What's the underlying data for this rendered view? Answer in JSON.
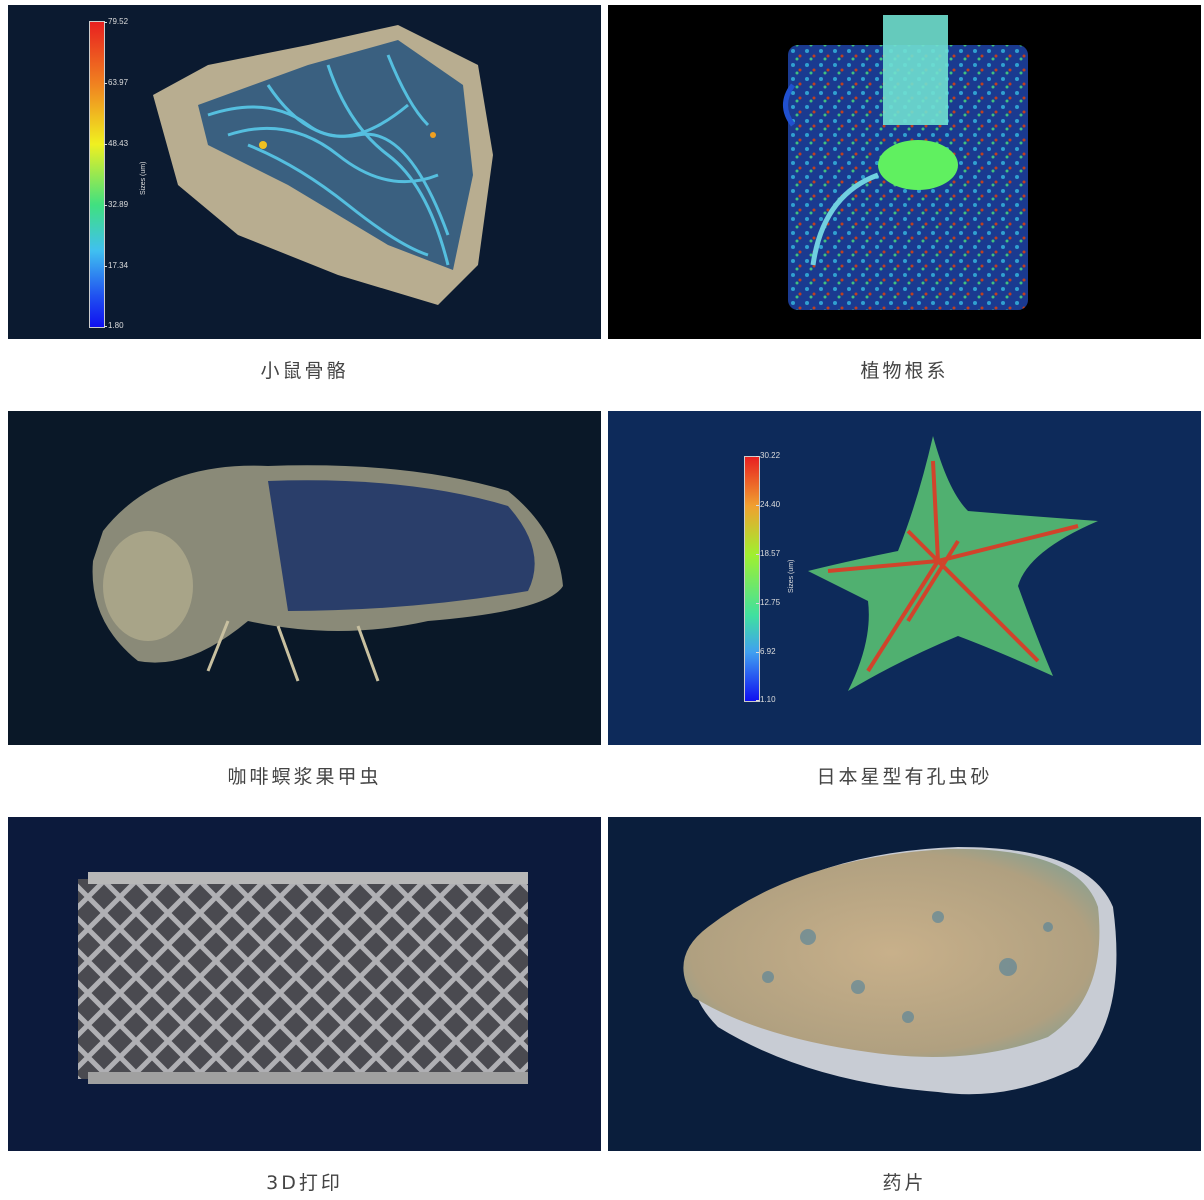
{
  "panels": [
    {
      "caption": "小鼠骨骼",
      "colorbar": {
        "label": "Sizes (um)",
        "ticks": [
          "79.52",
          "63.97",
          "48.43",
          "32.89",
          "17.34",
          "1.80"
        ]
      }
    },
    {
      "caption": "植物根系"
    },
    {
      "caption": "咖啡螟浆果甲虫"
    },
    {
      "caption": "日本星型有孔虫砂",
      "colorbar": {
        "label": "Sizes (um)",
        "ticks": [
          "30.22",
          "24.40",
          "18.57",
          "12.75",
          "6.92",
          "1.10"
        ]
      }
    },
    {
      "caption": "3D打印"
    },
    {
      "caption": "药片"
    }
  ],
  "colors": {
    "panel_bg_dark": "#0a1a30",
    "panel_bg_blue": "#0d2a5a",
    "caption_text": "#444444"
  }
}
